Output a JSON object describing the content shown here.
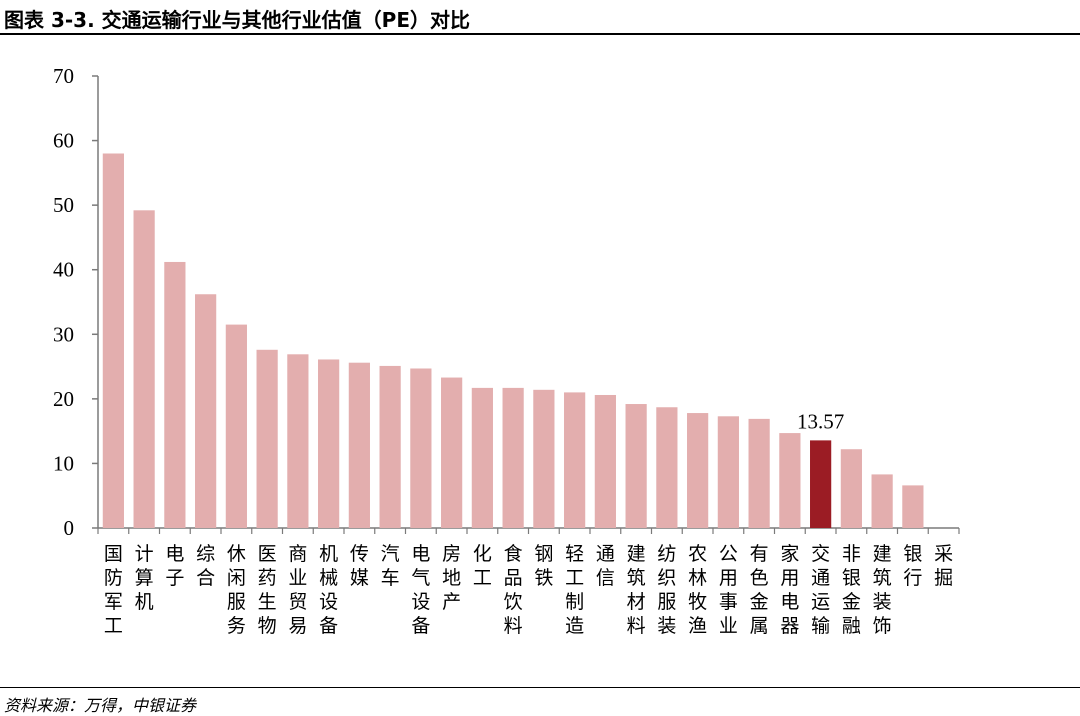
{
  "header": {
    "title": "图表 3-3. 交通运输行业与其他行业估值（PE）对比"
  },
  "footer": {
    "source": "资料来源：万得，中银证券"
  },
  "chart_data": {
    "type": "bar",
    "title": "",
    "xlabel": "",
    "ylabel": "",
    "ylim": [
      0,
      70
    ],
    "yticks": [
      0,
      10,
      20,
      30,
      40,
      50,
      60,
      70
    ],
    "grid": false,
    "legend": "none",
    "categories": [
      "国防军工",
      "计算机",
      "电子",
      "综合",
      "休闲服务",
      "医药生物",
      "商业贸易",
      "机械设备",
      "传媒",
      "汽车",
      "电气设备",
      "房地产",
      "化工",
      "食品饮料",
      "钢铁",
      "轻工制造",
      "通信",
      "建筑材料",
      "纺织服装",
      "农林牧渔",
      "公用事业",
      "有色金属",
      "家用电器",
      "交通运输",
      "非银金融",
      "建筑装饰",
      "银行",
      "采掘"
    ],
    "values": [
      58.0,
      49.2,
      41.2,
      36.2,
      31.5,
      27.6,
      26.9,
      26.1,
      25.6,
      25.1,
      24.7,
      23.3,
      21.7,
      21.7,
      21.4,
      21.0,
      20.6,
      19.2,
      18.7,
      17.8,
      17.3,
      16.9,
      14.7,
      13.57,
      12.2,
      8.3,
      6.6,
      0
    ],
    "highlight": {
      "category": "交通运输",
      "label": "13.57"
    },
    "colors": {
      "bar": "#e3aeae",
      "highlight": "#9b1c24",
      "axis": "#7a7a7a"
    }
  }
}
